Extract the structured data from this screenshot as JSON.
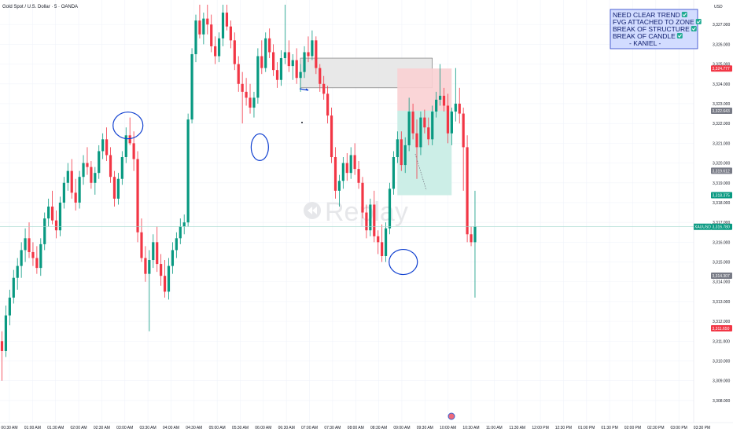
{
  "header": {
    "title": "Gold Spot / U.S. Dollar · 5 · OANDA",
    "currency": "USD"
  },
  "watermark": {
    "text": "Replay",
    "icon": "replay-icon"
  },
  "note": {
    "lines": [
      "NEED CLEAR TREND",
      "FVG ATTACHED TO ZONE",
      "BREAK OF STRUCTURE",
      "BREAK OF CANDLE",
      "- KANIEL -"
    ],
    "checks": [
      true,
      true,
      true,
      true,
      false
    ],
    "check_color": "#22ab94"
  },
  "colors": {
    "up": "#089981",
    "down": "#f23645",
    "grid": "#f0f3fa",
    "zone_fill": "#e6e6e6",
    "stop_fill": "#f9d0d3",
    "target_fill": "#c6ece4",
    "annotation": "#1040d0",
    "note_border": "#2a40c8",
    "note_bg": "#d2dcff"
  },
  "chart_data": {
    "type": "candlestick",
    "symbol": "XAUUSD",
    "timeframe": "5",
    "x_ticks": [
      "00:30 AM",
      "01:00 AM",
      "01:30 AM",
      "02:00 AM",
      "02:30 AM",
      "03:00 AM",
      "03:30 AM",
      "04:00 AM",
      "04:30 AM",
      "05:00 AM",
      "05:30 AM",
      "06:00 AM",
      "06:30 AM",
      "07:00 AM",
      "07:30 AM",
      "08:00 AM",
      "08:30 AM",
      "09:00 AM",
      "09:30 AM",
      "10:00 AM",
      "10:30 AM",
      "11:00 AM",
      "11:30 AM",
      "12:00 PM",
      "12:30 PM",
      "01:00 PM",
      "01:30 PM",
      "02:00 PM",
      "02:30 PM",
      "03:00 PM",
      "03:30 PM"
    ],
    "y_ticks": [
      "3,308.000",
      "3,309.000",
      "3,310.000",
      "3,311.000",
      "3,312.000",
      "3,313.000",
      "3,314.000",
      "3,315.000",
      "3,316.000",
      "3,317.000",
      "3,318.000",
      "3,319.000",
      "3,320.000",
      "3,321.000",
      "3,322.000",
      "3,323.000",
      "3,324.000",
      "3,325.000",
      "3,326.000",
      "3,327.000"
    ],
    "ylim": [
      3307.6,
      3328.0
    ],
    "price_labels": [
      {
        "value": 3324.777,
        "text": "3,324.777",
        "color": "#f23645"
      },
      {
        "value": 3322.643,
        "text": "3,322.643",
        "color": "#787b86"
      },
      {
        "value": 3319.612,
        "text": "3,319.612",
        "color": "#787b86"
      },
      {
        "value": 3318.375,
        "text": "3,318.375",
        "color": "#089981"
      },
      {
        "value": 3316.78,
        "text": "3,316.780",
        "color": "#089981",
        "prefix": "XAUUSD"
      },
      {
        "value": 3314.307,
        "text": "3,314.307",
        "color": "#787b86"
      },
      {
        "value": 3311.65,
        "text": "3,311.650",
        "color": "#f23645"
      }
    ],
    "current_price": 3316.78,
    "candles": [
      [
        3311.0,
        3311.5,
        3309.0,
        3310.5
      ],
      [
        3310.5,
        3312.8,
        3310.2,
        3312.3
      ],
      [
        3312.3,
        3313.6,
        3311.8,
        3313.2
      ],
      [
        3313.2,
        3314.6,
        3312.9,
        3314.2
      ],
      [
        3314.2,
        3315.2,
        3313.6,
        3314.8
      ],
      [
        3314.8,
        3316.0,
        3314.2,
        3315.6
      ],
      [
        3315.6,
        3316.7,
        3315.0,
        3316.2
      ],
      [
        3316.2,
        3317.0,
        3315.2,
        3315.5
      ],
      [
        3315.5,
        3316.0,
        3314.8,
        3315.2
      ],
      [
        3315.2,
        3315.8,
        3314.4,
        3314.7
      ],
      [
        3314.7,
        3316.2,
        3314.3,
        3315.9
      ],
      [
        3315.9,
        3317.5,
        3315.6,
        3317.2
      ],
      [
        3317.2,
        3318.2,
        3316.8,
        3317.8
      ],
      [
        3317.8,
        3318.6,
        3316.9,
        3317.1
      ],
      [
        3317.1,
        3317.6,
        3316.2,
        3316.6
      ],
      [
        3316.6,
        3318.3,
        3316.3,
        3318.0
      ],
      [
        3318.0,
        3319.3,
        3317.7,
        3319.0
      ],
      [
        3319.0,
        3320.0,
        3318.6,
        3319.6
      ],
      [
        3319.6,
        3320.2,
        3318.2,
        3318.5
      ],
      [
        3318.5,
        3319.2,
        3317.6,
        3318.0
      ],
      [
        3318.0,
        3319.6,
        3317.7,
        3319.3
      ],
      [
        3319.3,
        3320.4,
        3318.9,
        3320.0
      ],
      [
        3320.0,
        3320.8,
        3319.4,
        3319.8
      ],
      [
        3319.8,
        3320.1,
        3318.7,
        3319.0
      ],
      [
        3319.0,
        3319.8,
        3318.4,
        3319.5
      ],
      [
        3319.5,
        3320.9,
        3319.2,
        3320.6
      ],
      [
        3320.6,
        3321.5,
        3320.2,
        3321.2
      ],
      [
        3321.2,
        3321.8,
        3320.1,
        3320.4
      ],
      [
        3320.4,
        3320.8,
        3319.0,
        3319.3
      ],
      [
        3319.3,
        3319.6,
        3317.8,
        3318.2
      ],
      [
        3318.2,
        3319.5,
        3317.9,
        3319.2
      ],
      [
        3319.2,
        3320.6,
        3318.9,
        3320.3
      ],
      [
        3320.3,
        3321.8,
        3320.0,
        3321.4
      ],
      [
        3321.4,
        3322.3,
        3320.9,
        3321.0
      ],
      [
        3321.0,
        3321.6,
        3319.6,
        3320.2
      ],
      [
        3320.2,
        3320.6,
        3316.0,
        3316.5
      ],
      [
        3316.5,
        3317.2,
        3315.0,
        3315.2
      ],
      [
        3315.2,
        3315.8,
        3314.0,
        3314.4
      ],
      [
        3314.4,
        3315.6,
        3311.5,
        3315.1
      ],
      [
        3315.1,
        3316.4,
        3314.7,
        3316.0
      ],
      [
        3316.0,
        3316.8,
        3314.5,
        3314.9
      ],
      [
        3314.9,
        3315.4,
        3313.8,
        3314.3
      ],
      [
        3314.3,
        3315.1,
        3313.2,
        3313.5
      ],
      [
        3313.5,
        3315.2,
        3313.1,
        3314.8
      ],
      [
        3314.8,
        3316.0,
        3314.4,
        3315.6
      ],
      [
        3315.6,
        3316.5,
        3315.2,
        3316.2
      ],
      [
        3316.2,
        3317.2,
        3315.9,
        3316.8
      ],
      [
        3316.8,
        3317.4,
        3316.4,
        3317.0
      ],
      [
        3317.0,
        3322.5,
        3316.8,
        3322.2
      ],
      [
        3322.2,
        3325.8,
        3322.0,
        3325.5
      ],
      [
        3325.5,
        3327.5,
        3325.1,
        3327.2
      ],
      [
        3327.2,
        3328.0,
        3326.3,
        3326.5
      ],
      [
        3326.5,
        3327.6,
        3326.0,
        3327.3
      ],
      [
        3327.3,
        3328.0,
        3326.5,
        3327.0
      ],
      [
        3327.0,
        3327.5,
        3325.6,
        3325.9
      ],
      [
        3325.9,
        3326.4,
        3325.0,
        3325.4
      ],
      [
        3325.4,
        3326.6,
        3325.1,
        3326.3
      ],
      [
        3326.3,
        3328.0,
        3325.9,
        3327.6
      ],
      [
        3327.6,
        3328.0,
        3326.7,
        3326.9
      ],
      [
        3326.9,
        3327.2,
        3325.8,
        3326.2
      ],
      [
        3326.2,
        3326.6,
        3324.7,
        3325.0
      ],
      [
        3325.0,
        3325.4,
        3323.6,
        3324.0
      ],
      [
        3324.0,
        3324.6,
        3322.0,
        3323.6
      ],
      [
        3323.6,
        3324.3,
        3322.9,
        3323.3
      ],
      [
        3323.3,
        3324.0,
        3322.5,
        3322.8
      ],
      [
        3322.8,
        3323.6,
        3322.3,
        3323.3
      ],
      [
        3323.3,
        3325.8,
        3323.0,
        3325.4
      ],
      [
        3325.4,
        3326.2,
        3324.5,
        3324.8
      ],
      [
        3324.8,
        3326.6,
        3324.6,
        3326.3
      ],
      [
        3326.3,
        3326.8,
        3325.3,
        3325.6
      ],
      [
        3325.6,
        3326.0,
        3324.4,
        3324.7
      ],
      [
        3324.7,
        3325.1,
        3323.8,
        3324.2
      ],
      [
        3324.2,
        3325.7,
        3323.9,
        3325.3
      ],
      [
        3325.3,
        3328.0,
        3325.0,
        3325.6
      ],
      [
        3325.6,
        3326.2,
        3324.6,
        3324.9
      ],
      [
        3324.9,
        3325.5,
        3324.2,
        3325.2
      ],
      [
        3325.2,
        3325.8,
        3324.0,
        3324.3
      ],
      [
        3324.3,
        3325.0,
        3323.6,
        3324.6
      ],
      [
        3324.6,
        3325.9,
        3324.3,
        3325.6
      ],
      [
        3325.6,
        3326.4,
        3325.1,
        3325.4
      ],
      [
        3325.4,
        3326.7,
        3325.2,
        3326.2
      ],
      [
        3326.2,
        3326.4,
        3324.5,
        3324.8
      ],
      [
        3324.8,
        3325.0,
        3323.6,
        3324.0
      ],
      [
        3324.0,
        3324.4,
        3323.2,
        3323.5
      ],
      [
        3323.5,
        3323.9,
        3322.0,
        3322.4
      ],
      [
        3322.4,
        3322.8,
        3320.0,
        3320.3
      ],
      [
        3320.3,
        3320.8,
        3318.2,
        3318.6
      ],
      [
        3318.6,
        3319.4,
        3317.8,
        3319.1
      ],
      [
        3319.1,
        3320.3,
        3318.7,
        3320.0
      ],
      [
        3320.0,
        3320.5,
        3319.1,
        3319.5
      ],
      [
        3319.5,
        3320.8,
        3319.2,
        3320.4
      ],
      [
        3320.4,
        3321.0,
        3319.4,
        3319.7
      ],
      [
        3319.7,
        3320.1,
        3318.7,
        3319.0
      ],
      [
        3319.0,
        3319.3,
        3317.2,
        3317.5
      ],
      [
        3317.5,
        3317.9,
        3316.2,
        3316.6
      ],
      [
        3316.6,
        3318.2,
        3316.3,
        3317.9
      ],
      [
        3317.9,
        3318.6,
        3316.0,
        3316.3
      ],
      [
        3316.3,
        3316.6,
        3315.4,
        3316.0
      ],
      [
        3316.0,
        3316.9,
        3315.0,
        3315.3
      ],
      [
        3315.3,
        3317.0,
        3315.0,
        3316.7
      ],
      [
        3316.7,
        3319.0,
        3316.4,
        3318.7
      ],
      [
        3318.7,
        3320.6,
        3318.4,
        3320.3
      ],
      [
        3320.3,
        3321.6,
        3320.0,
        3321.2
      ],
      [
        3321.2,
        3321.6,
        3319.6,
        3319.9
      ],
      [
        3319.9,
        3321.3,
        3319.5,
        3320.9
      ],
      [
        3320.9,
        3323.3,
        3320.6,
        3322.6
      ],
      [
        3322.6,
        3323.0,
        3321.2,
        3321.5
      ],
      [
        3321.5,
        3322.2,
        3319.2,
        3320.8
      ],
      [
        3320.8,
        3322.6,
        3320.4,
        3322.3
      ],
      [
        3322.3,
        3322.7,
        3321.5,
        3321.8
      ],
      [
        3321.8,
        3322.3,
        3320.9,
        3321.2
      ],
      [
        3321.2,
        3322.9,
        3320.9,
        3322.6
      ],
      [
        3322.6,
        3323.6,
        3322.3,
        3323.2
      ],
      [
        3323.2,
        3325.0,
        3322.9,
        3323.4
      ],
      [
        3323.4,
        3323.8,
        3322.6,
        3322.9
      ],
      [
        3322.9,
        3323.5,
        3321.0,
        3321.5
      ],
      [
        3321.5,
        3322.8,
        3320.9,
        3322.6
      ],
      [
        3322.6,
        3324.8,
        3322.1,
        3323.0
      ],
      [
        3323.0,
        3323.8,
        3322.0,
        3322.5
      ],
      [
        3322.5,
        3322.8,
        3318.6,
        3320.8
      ],
      [
        3320.8,
        3321.4,
        3316.0,
        3316.4
      ],
      [
        3316.4,
        3316.8,
        3315.8,
        3316.0
      ],
      [
        3316.0,
        3318.6,
        3313.2,
        3316.8
      ]
    ],
    "zones": [
      {
        "name": "fvg-zone",
        "x0": 88,
        "x1": 122,
        "y0": 3323.8,
        "y1": 3325.3
      },
      {
        "name": "stop-zone",
        "x0": 113,
        "x1": 127,
        "y0": 3322.643,
        "y1": 3324.777
      },
      {
        "name": "target-zone",
        "x0": 113,
        "x1": 127,
        "y0": 3318.375,
        "y1": 3322.643
      }
    ],
    "annotations": [
      {
        "name": "swing-high-circle",
        "index": 32.5,
        "price": 3321.9,
        "rx": 19,
        "ry": 17
      },
      {
        "name": "swing-low-circle-1",
        "index": 66.5,
        "price": 3320.8,
        "rx": 11,
        "ry": 17
      },
      {
        "name": "swing-low-circle-2",
        "index": 103.5,
        "price": 3315.0,
        "rx": 18,
        "ry": 16
      }
    ]
  }
}
